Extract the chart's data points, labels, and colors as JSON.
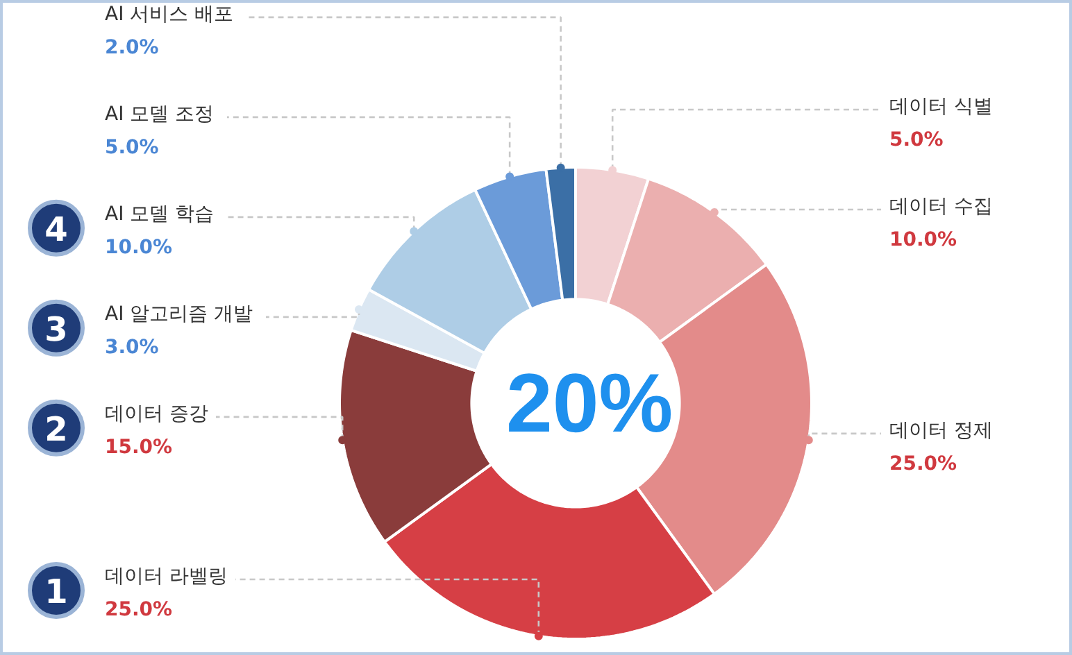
{
  "chart_data": {
    "type": "donut",
    "categories": [
      "데이터 식별",
      "데이터 수집",
      "데이터 정제",
      "데이터 라벨링",
      "데이터 증강",
      "AI 알고리즘 개발",
      "AI 모델 학습",
      "AI 모델 조정",
      "AI 서비스 배포"
    ],
    "values": [
      5,
      10,
      25,
      25,
      15,
      3,
      10,
      5,
      2
    ],
    "colors": [
      "#f2d1d3",
      "#ebafaf",
      "#e38b8a",
      "#d63f45",
      "#8a3c3b",
      "#dbe7f2",
      "#aecde6",
      "#6b9bd9",
      "#3b6fa6"
    ],
    "value_labels": [
      "5.0%",
      "10.0%",
      "25.0%",
      "25.0%",
      "15.0%",
      "3.0%",
      "10.0%",
      "5.0%",
      "2.0%"
    ],
    "annotations": [
      "20%",
      "1",
      "2",
      "3",
      "4"
    ]
  }
}
